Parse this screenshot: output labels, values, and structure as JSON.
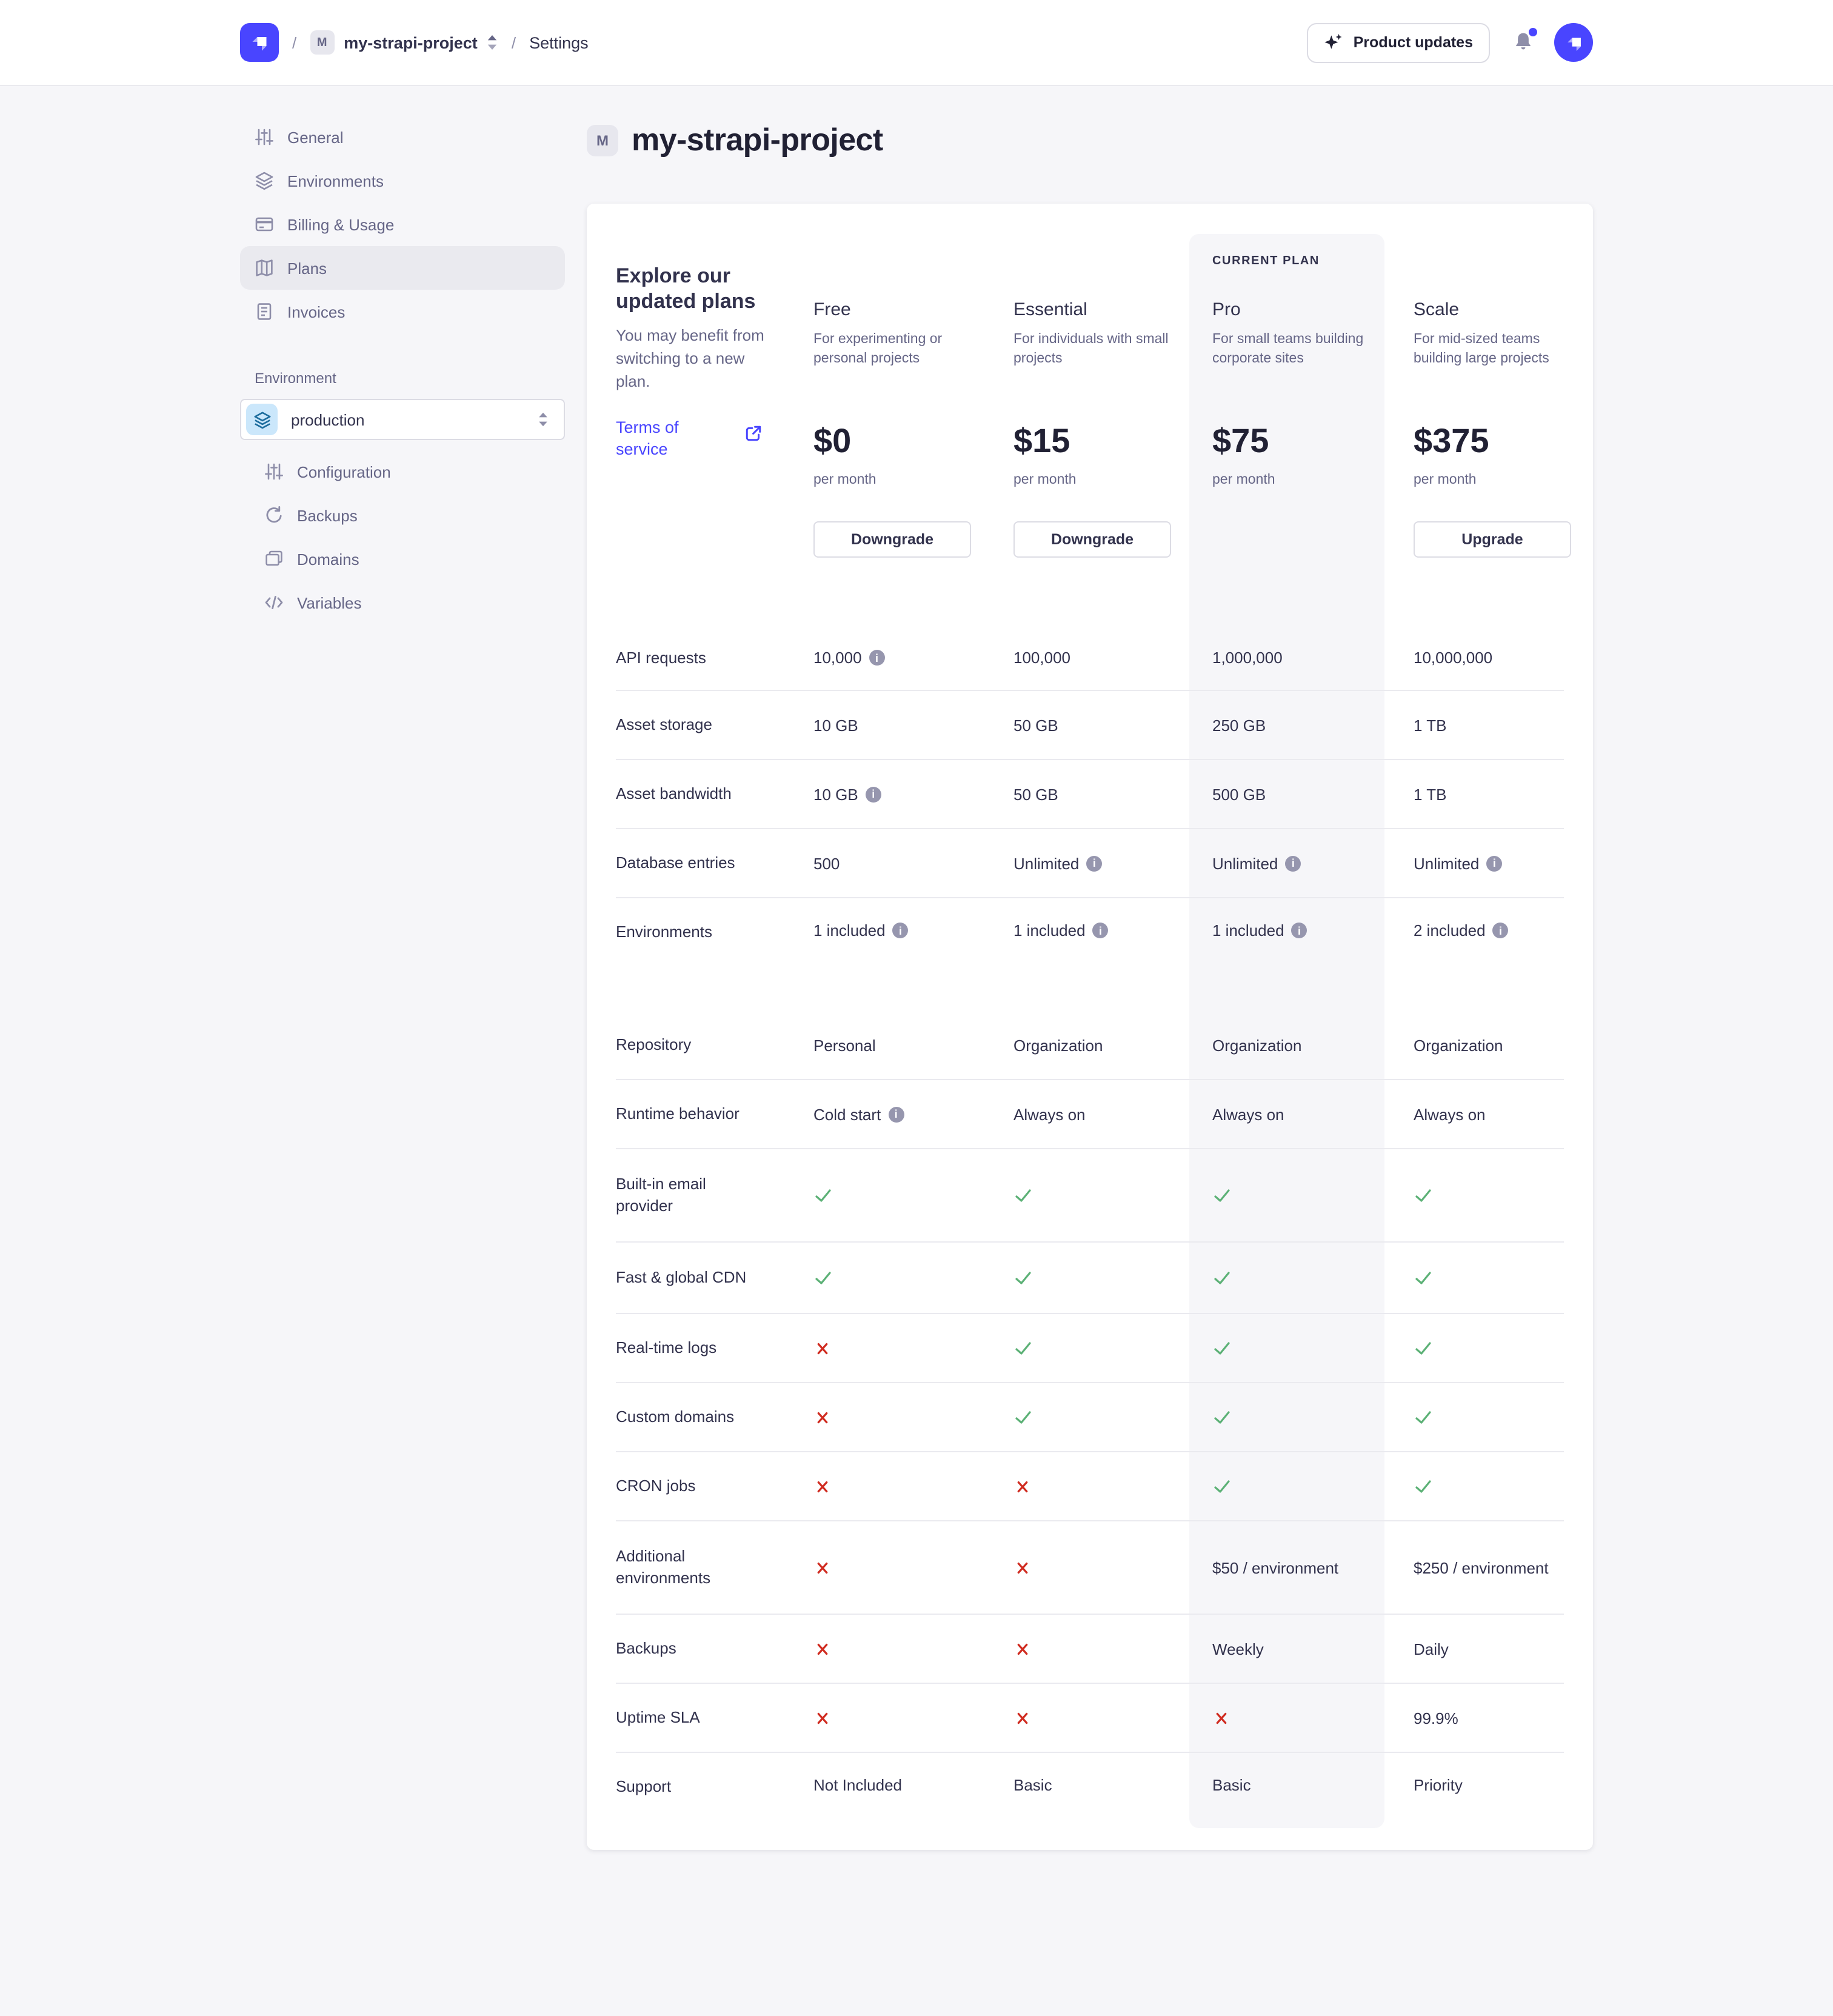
{
  "topbar": {
    "breadcrumb": {
      "separator": "/",
      "project_initial": "M",
      "project_name": "my-strapi-project",
      "section": "Settings"
    },
    "product_updates_label": "Product updates"
  },
  "sidebar": {
    "items": [
      {
        "label": "General",
        "icon": "mixer-icon",
        "selected": false
      },
      {
        "label": "Environments",
        "icon": "layers-icon",
        "selected": false
      },
      {
        "label": "Billing & Usage",
        "icon": "credit-card-icon",
        "selected": false
      },
      {
        "label": "Plans",
        "icon": "map-icon",
        "selected": true
      },
      {
        "label": "Invoices",
        "icon": "invoice-icon",
        "selected": false
      }
    ],
    "environment_label": "Environment",
    "environment_value": "production",
    "env_items": [
      {
        "label": "Configuration",
        "icon": "mixer-icon"
      },
      {
        "label": "Backups",
        "icon": "refresh-icon"
      },
      {
        "label": "Domains",
        "icon": "copy-folder-icon"
      },
      {
        "label": "Variables",
        "icon": "code-icon"
      }
    ]
  },
  "page": {
    "title_initial": "M",
    "title": "my-strapi-project"
  },
  "plans": {
    "intro": {
      "heading": "Explore our updated plans",
      "subtext": "You may benefit from switching to a new plan.",
      "link_label": "Terms of service"
    },
    "current_plan_label": "CURRENT PLAN",
    "columns": [
      {
        "name": "Free",
        "description": "For experimenting or personal projects",
        "price": "$0",
        "period": "per month",
        "action": "Downgrade",
        "current": false
      },
      {
        "name": "Essential",
        "description": "For individuals with small projects",
        "price": "$15",
        "period": "per month",
        "action": "Downgrade",
        "current": false
      },
      {
        "name": "Pro",
        "description": "For small teams building corporate sites",
        "price": "$75",
        "period": "per month",
        "current": true
      },
      {
        "name": "Scale",
        "description": "For mid-sized teams building large projects",
        "price": "$375",
        "period": "per month",
        "action": "Upgrade",
        "current": false
      }
    ],
    "rows": [
      {
        "feature": "API requests",
        "cells": [
          {
            "t": "10,000",
            "info": true
          },
          {
            "t": "100,000"
          },
          {
            "t": "1,000,000"
          },
          {
            "t": "10,000,000"
          }
        ]
      },
      {
        "feature": "Asset storage",
        "cells": [
          {
            "t": "10 GB"
          },
          {
            "t": "50 GB"
          },
          {
            "t": "250 GB"
          },
          {
            "t": "1 TB"
          }
        ]
      },
      {
        "feature": "Asset bandwidth",
        "cells": [
          {
            "t": "10 GB",
            "info": true
          },
          {
            "t": "50 GB"
          },
          {
            "t": "500 GB"
          },
          {
            "t": "1 TB"
          }
        ]
      },
      {
        "feature": "Database entries",
        "cells": [
          {
            "t": "500"
          },
          {
            "t": "Unlimited",
            "info": true
          },
          {
            "t": "Unlimited",
            "info": true
          },
          {
            "t": "Unlimited",
            "info": true
          }
        ]
      },
      {
        "feature": "Environments",
        "cells": [
          {
            "t": "1 included",
            "info": true
          },
          {
            "t": "1 included",
            "info": true
          },
          {
            "t": "1 included",
            "info": true
          },
          {
            "t": "2 included",
            "info": true
          }
        ]
      },
      {
        "feature": "Repository",
        "cells": [
          {
            "t": "Personal"
          },
          {
            "t": "Organization"
          },
          {
            "t": "Organization"
          },
          {
            "t": "Organization"
          }
        ]
      },
      {
        "feature": "Runtime behavior",
        "cells": [
          {
            "t": "Cold start",
            "info": true
          },
          {
            "t": "Always on"
          },
          {
            "t": "Always on"
          },
          {
            "t": "Always on"
          }
        ]
      },
      {
        "feature": "Built-in email provider",
        "cells": [
          {
            "check": true
          },
          {
            "check": true
          },
          {
            "check": true
          },
          {
            "check": true
          }
        ]
      },
      {
        "feature": "Fast & global CDN",
        "cells": [
          {
            "check": true
          },
          {
            "check": true
          },
          {
            "check": true
          },
          {
            "check": true
          }
        ]
      },
      {
        "feature": "Real-time logs",
        "cells": [
          {
            "cross": true
          },
          {
            "check": true
          },
          {
            "check": true
          },
          {
            "check": true
          }
        ]
      },
      {
        "feature": "Custom domains",
        "cells": [
          {
            "cross": true
          },
          {
            "check": true
          },
          {
            "check": true
          },
          {
            "check": true
          }
        ]
      },
      {
        "feature": "CRON jobs",
        "cells": [
          {
            "cross": true
          },
          {
            "cross": true
          },
          {
            "check": true
          },
          {
            "check": true
          }
        ]
      },
      {
        "feature": "Additional environments",
        "cells": [
          {
            "cross": true
          },
          {
            "cross": true
          },
          {
            "t": "$50 / environment"
          },
          {
            "t": "$250 / environment"
          }
        ]
      },
      {
        "feature": "Backups",
        "cells": [
          {
            "cross": true
          },
          {
            "cross": true
          },
          {
            "t": "Weekly"
          },
          {
            "t": "Daily"
          }
        ]
      },
      {
        "feature": "Uptime SLA",
        "cells": [
          {
            "cross": true
          },
          {
            "cross": true
          },
          {
            "cross": true
          },
          {
            "t": "99.9%"
          }
        ]
      },
      {
        "feature": "Support",
        "cells": [
          {
            "t": "Not Included"
          },
          {
            "t": "Basic"
          },
          {
            "t": "Basic"
          },
          {
            "t": "Priority"
          }
        ]
      }
    ]
  },
  "icons": {
    "product_updates": "sparkles",
    "notifications": "bell",
    "breadcrumb_sort": "up-down-arrows",
    "external_link": "arrow-out-of-box",
    "info": "i-circle",
    "included": "check",
    "not_included": "cross"
  },
  "colors": {
    "accent": "#4945ff",
    "link": "#4945ff",
    "success_check": "#5cb176",
    "danger_cross": "#d02b20",
    "highlight_column": "#f6f6f9"
  }
}
